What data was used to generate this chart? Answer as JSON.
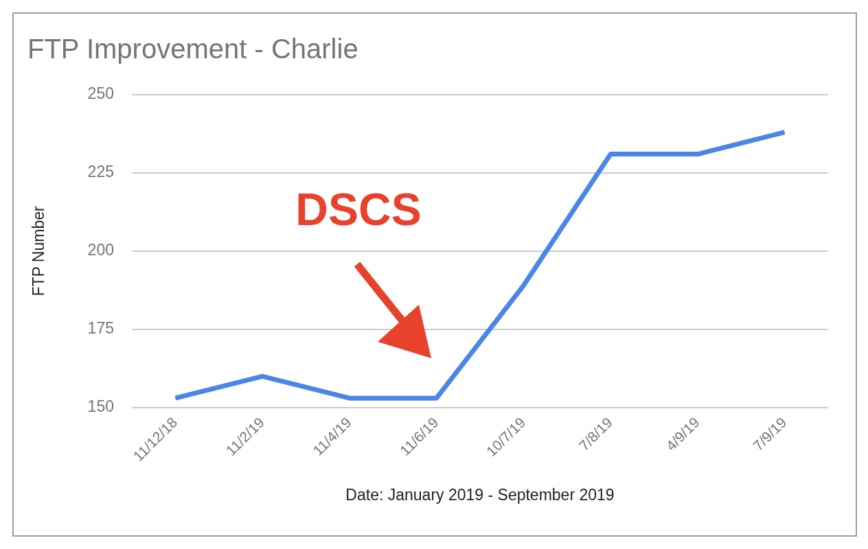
{
  "chart_data": {
    "type": "line",
    "title": "FTP Improvement - Charlie",
    "xlabel": "Date: January 2019 - September 2019",
    "ylabel": "FTP Number",
    "categories": [
      "11/12/18",
      "11/2/19",
      "11/4/19",
      "11/6/19",
      "10/7/19",
      "7/8/19",
      "4/9/19",
      "7/9/19"
    ],
    "series": [
      {
        "color": "#4a86e8",
        "values": [
          153,
          160,
          153,
          153,
          189,
          231,
          231,
          238
        ]
      }
    ],
    "ylim": [
      150,
      250
    ],
    "yticks": [
      150,
      175,
      200,
      225,
      250
    ],
    "grid": "y",
    "legend": false,
    "marker": "none",
    "line_style": "solid",
    "annotations": [
      "DSCS"
    ]
  }
}
